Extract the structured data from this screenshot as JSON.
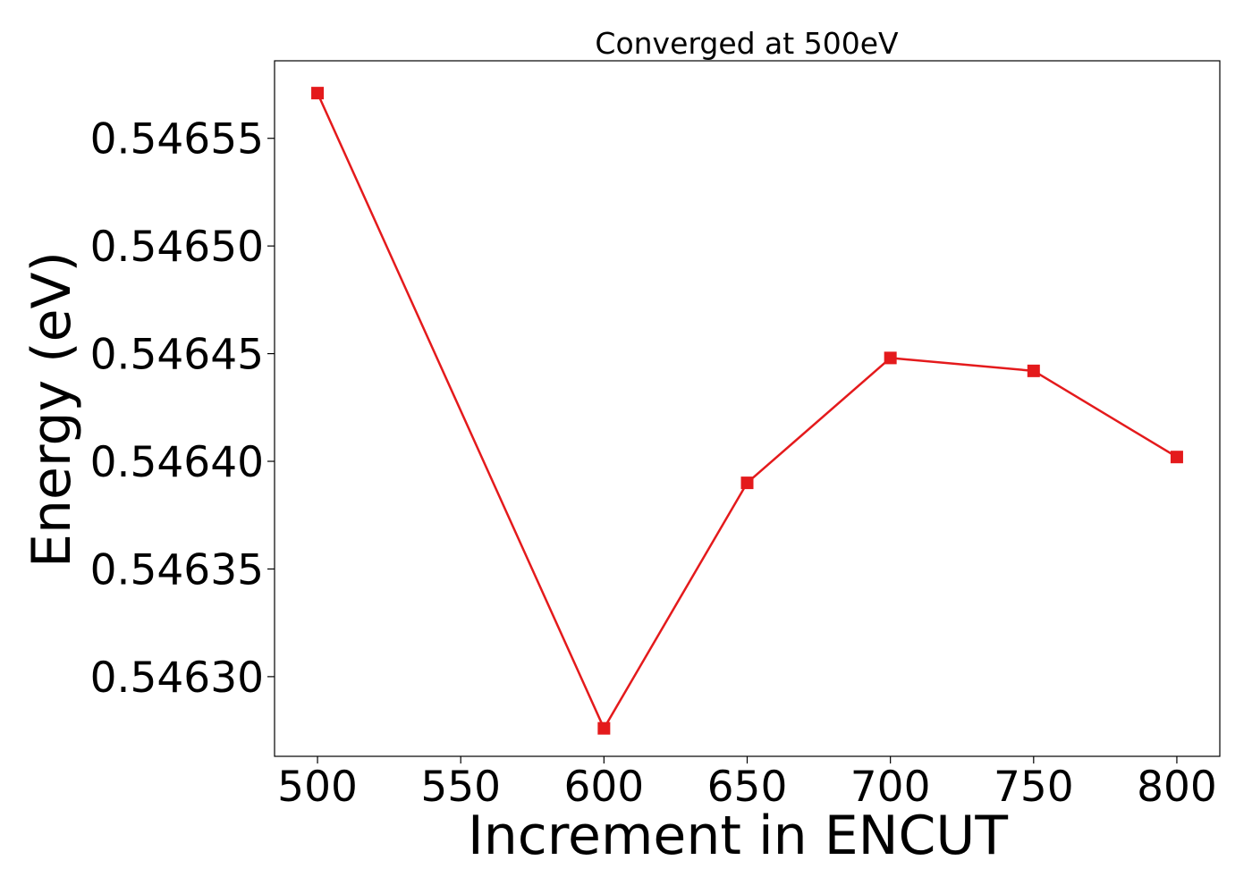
{
  "chart_data": {
    "type": "line",
    "title": "Converged at 500eV",
    "xlabel": "Increment in ENCUT",
    "ylabel": "Energy (eV)",
    "x": [
      500,
      600,
      650,
      700,
      750,
      800
    ],
    "series": [
      {
        "values": [
          0.546571,
          0.546276,
          0.54639,
          0.546448,
          0.546442,
          0.546402
        ],
        "color": "#e41a1c",
        "marker": "square"
      }
    ],
    "xlim": [
      485,
      815
    ],
    "ylim": [
      0.546263,
      0.546586
    ],
    "xticks": [
      500,
      550,
      600,
      650,
      700,
      750,
      800
    ],
    "xtick_labels": [
      "500",
      "550",
      "600",
      "650",
      "700",
      "750",
      "800"
    ],
    "yticks": [
      0.5463,
      0.54635,
      0.5464,
      0.54645,
      0.5465,
      0.54655
    ],
    "ytick_labels": [
      "0.54630",
      "0.54635",
      "0.54640",
      "0.54645",
      "0.54650",
      "0.54655"
    ],
    "grid": false,
    "legend": false
  }
}
